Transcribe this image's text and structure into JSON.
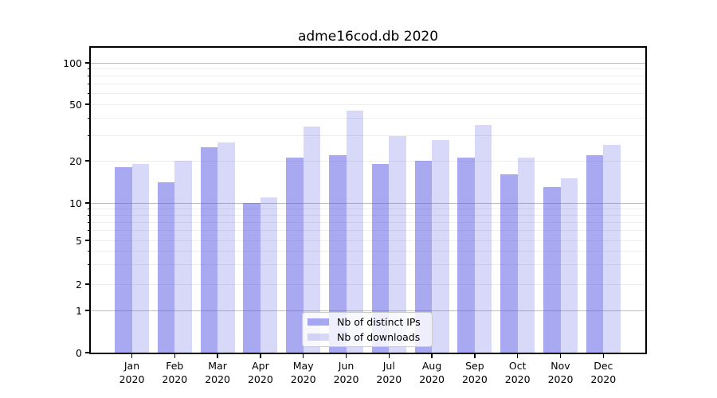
{
  "chart_data": {
    "type": "bar",
    "title": "adme16cod.db 2020",
    "categories": [
      "Jan 2020",
      "Feb 2020",
      "Mar 2020",
      "Apr 2020",
      "May 2020",
      "Jun 2020",
      "Jul 2020",
      "Aug 2020",
      "Sep 2020",
      "Oct 2020",
      "Nov 2020",
      "Dec 2020"
    ],
    "series": [
      {
        "name": "Nb of distinct IPs",
        "color": "rgba(90,90,230,0.52)",
        "values": [
          18,
          14,
          25,
          10,
          21,
          22,
          19,
          20,
          21,
          16,
          13,
          22
        ]
      },
      {
        "name": "Nb of downloads",
        "color": "rgba(90,90,230,0.235)",
        "values": [
          19,
          20,
          27,
          11,
          35,
          45,
          30,
          28,
          36,
          21,
          15,
          26
        ]
      }
    ],
    "yscale": "log",
    "y_tick_values": [
      0,
      1,
      2,
      5,
      10,
      20,
      50,
      100
    ],
    "y_tick_labels": [
      "0",
      "1",
      "2",
      "5",
      "10",
      "20",
      "50",
      "100"
    ],
    "ylim": [
      0,
      128
    ],
    "xlabel": "",
    "ylabel": "",
    "grid": true,
    "legend_position": "lower center"
  },
  "colors": {
    "grid_major": "#bdbdbd",
    "grid_minor": "#ededed",
    "spine": "#000000",
    "background": "#ffffff"
  }
}
